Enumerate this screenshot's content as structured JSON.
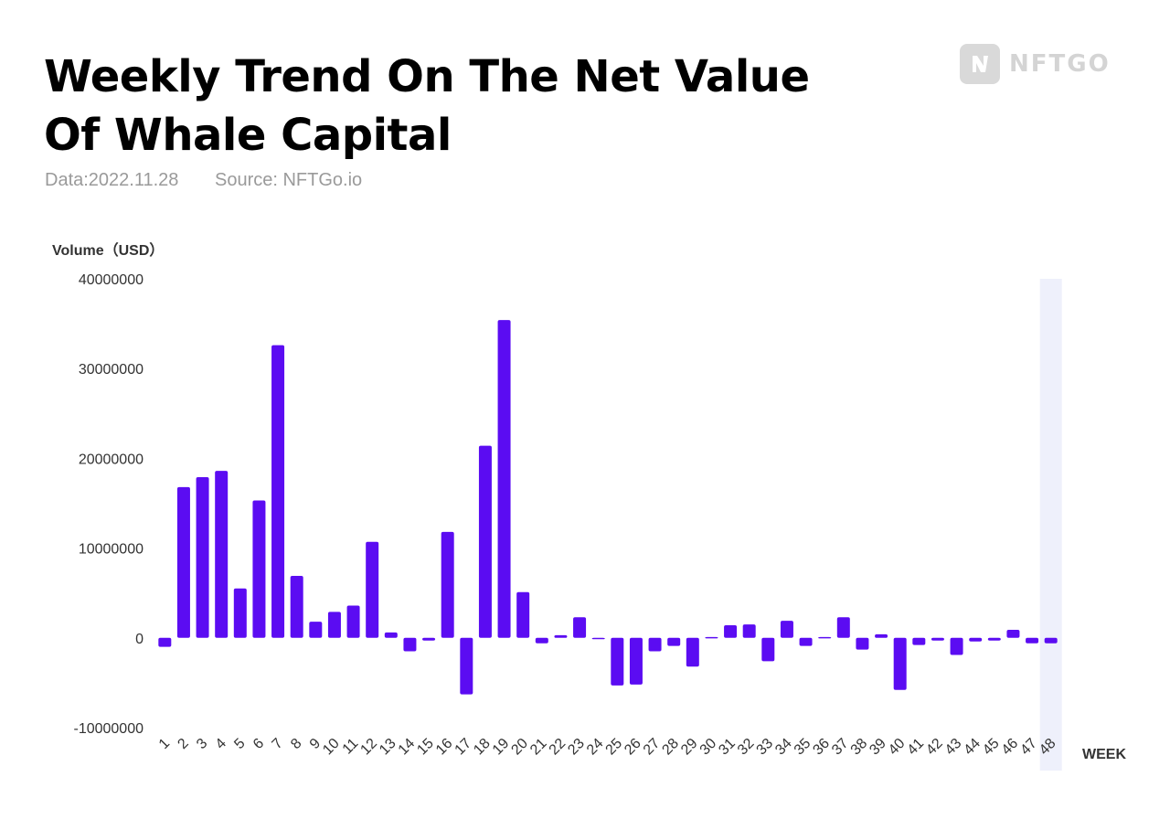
{
  "header": {
    "title_line1": "Weekly Trend On The Net Value",
    "title_line2": "Of Whale Capital",
    "date": "Data:2022.11.28",
    "source": "Source: NFTGo.io",
    "logo_text": "NFTGO"
  },
  "chart_data": {
    "type": "bar",
    "ylabel": "Volume（USD）",
    "xlabel": "WEEK",
    "ylim": [
      -10000000,
      40000000
    ],
    "yticks": [
      "40000000",
      "30000000",
      "20000000",
      "10000000",
      "0",
      "-10000000"
    ],
    "ytick_values": [
      40000000,
      30000000,
      20000000,
      10000000,
      0,
      -10000000
    ],
    "categories": [
      "1",
      "2",
      "3",
      "4",
      "5",
      "6",
      "7",
      "8",
      "9",
      "10",
      "11",
      "12",
      "13",
      "14",
      "15",
      "16",
      "17",
      "18",
      "19",
      "20",
      "21",
      "22",
      "23",
      "24",
      "25",
      "26",
      "27",
      "28",
      "29",
      "30",
      "31",
      "32",
      "33",
      "34",
      "35",
      "36",
      "37",
      "38",
      "39",
      "40",
      "41",
      "42",
      "43",
      "44",
      "45",
      "46",
      "47",
      "48"
    ],
    "values": [
      -1000000,
      16800000,
      17900000,
      18600000,
      5500000,
      15300000,
      32600000,
      6900000,
      1800000,
      2900000,
      3600000,
      10700000,
      600000,
      -1500000,
      -300000,
      11800000,
      -6300000,
      21400000,
      35400000,
      5100000,
      -600000,
      300000,
      2300000,
      -100000,
      -5300000,
      -5200000,
      -1500000,
      -900000,
      -3200000,
      100000,
      1400000,
      1500000,
      -2600000,
      1900000,
      -900000,
      100000,
      2300000,
      -1300000,
      400000,
      -5800000,
      -800000,
      -300000,
      -1900000,
      -400000,
      -300000,
      900000,
      -600000,
      -600000
    ],
    "highlight_category": "48",
    "colors": {
      "bar": "#5b0cf2",
      "highlight": "#eef0fb"
    },
    "grid": false,
    "legend": "none"
  }
}
